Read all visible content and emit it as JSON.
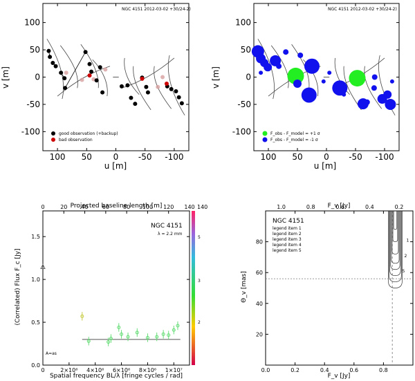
{
  "chart_data": [
    {
      "type": "scatter",
      "id": "uv_left",
      "title": "NGC 4151 2012-03-02 +30/24-2)",
      "xlabel": "u [m]",
      "ylabel": "v [m]",
      "xlim": [
        125,
        -125
      ],
      "ylim": [
        -135,
        135
      ],
      "xticks": [
        100,
        50,
        0,
        -50,
        -100
      ],
      "yticks": [
        100,
        50,
        0,
        -50,
        -100
      ],
      "legend": [
        "good observation (+backup)",
        "bad observation"
      ],
      "good_points": [
        [
          115,
          48
        ],
        [
          113,
          37
        ],
        [
          108,
          26
        ],
        [
          103,
          20
        ],
        [
          94,
          8
        ],
        [
          88,
          -2
        ],
        [
          87,
          -20
        ],
        [
          52,
          46
        ],
        [
          45,
          24
        ],
        [
          42,
          10
        ],
        [
          27,
          18
        ],
        [
          33,
          -6
        ],
        [
          23,
          -28
        ],
        [
          -10,
          -17
        ],
        [
          -20,
          -15
        ],
        [
          -26,
          -38
        ],
        [
          -33,
          -49
        ],
        [
          -45,
          -1
        ],
        [
          -52,
          -18
        ],
        [
          -55,
          -28
        ],
        [
          -88,
          -17
        ],
        [
          -95,
          -22
        ],
        [
          -103,
          -26
        ],
        [
          -108,
          -37
        ],
        [
          -113,
          -48
        ]
      ],
      "bad_points": [
        [
          45,
          3
        ],
        [
          -45,
          -3
        ],
        [
          -87,
          -12
        ]
      ],
      "backup_points": [
        [
          58,
          -5
        ],
        [
          38,
          -4
        ],
        [
          18,
          14
        ],
        [
          -72,
          -18
        ],
        [
          -80,
          0
        ],
        [
          85,
          8
        ]
      ]
    },
    {
      "type": "scatter",
      "id": "uv_right",
      "title": "NGC 4151 2012-03-02 +30/24-2)",
      "xlabel": "u [m]",
      "ylabel": "v [m]",
      "xlim": [
        125,
        -125
      ],
      "ylim": [
        -135,
        135
      ],
      "xticks": [
        100,
        50,
        0,
        -50,
        -100
      ],
      "yticks": [
        100,
        50,
        0,
        -50,
        -100
      ],
      "legend": [
        "F_obs - F_model = +1 σ",
        "F_obs - F_model = -1 σ"
      ],
      "green_points": [
        [
          53,
          2
        ],
        [
          -53,
          -2
        ]
      ],
      "green_sizes": [
        12,
        12
      ],
      "blue_points": [
        [
          118,
          47
        ],
        [
          113,
          34
        ],
        [
          107,
          26
        ],
        [
          101,
          18
        ],
        [
          88,
          30
        ],
        [
          25,
          20
        ],
        [
          30,
          -33
        ],
        [
          -23,
          -20
        ],
        [
          -63,
          -49
        ],
        [
          -96,
          -40
        ],
        [
          -105,
          -32
        ],
        [
          -110,
          -50
        ],
        [
          -83,
          0
        ],
        [
          -30,
          -32
        ],
        [
          45,
          40
        ],
        [
          113,
          8
        ],
        [
          -113,
          -8
        ],
        [
          50,
          -12
        ],
        [
          5,
          -8
        ],
        [
          -5,
          8
        ],
        [
          82,
          20
        ],
        [
          -82,
          -20
        ],
        [
          70,
          46
        ],
        [
          -70,
          -46
        ]
      ],
      "blue_sizes": [
        9,
        7,
        6,
        6,
        8,
        11,
        11,
        11,
        8,
        7,
        6,
        8,
        4,
        3,
        4,
        3,
        3,
        6,
        3,
        3,
        4,
        4,
        4,
        4
      ]
    },
    {
      "type": "scatter",
      "id": "visibility",
      "title": "NGC 4151",
      "subtitle": "λ = 2.2 mm",
      "xlabel": "Spatial frequency BL/λ [fringe cycles / rad]",
      "ylabel": "(Correlated) Flux F_c [Jy]",
      "top_xlabel": "Projected baseline length [m]",
      "corner_label": "A=as",
      "xlim": [
        0,
        11200000.0
      ],
      "ylim": [
        0,
        1.8
      ],
      "xticks_data": [
        0,
        2000000,
        4000000,
        6000000,
        8000000,
        10000000
      ],
      "xtick_labels": [
        "0",
        "2×10⁶",
        "4×10⁶",
        "6×10⁶",
        "8×10⁶",
        "1×10⁷"
      ],
      "yticks": [
        0.0,
        0.5,
        1.0,
        1.5
      ],
      "ytick_labels": [
        "0.0",
        "0.5",
        "1.0",
        "1.5"
      ],
      "top_ticks": [
        0,
        20,
        40,
        60,
        80,
        100,
        120,
        140
      ],
      "colorbar_max": 140,
      "colorbar_tick_labels": [
        "5",
        "3",
        "2"
      ],
      "x": [
        0,
        3000000,
        3500000,
        5000000,
        5200000,
        5800000,
        6000000,
        6500000,
        7200000,
        8000000,
        8700000,
        9200000,
        9600000,
        10000000,
        10300000
      ],
      "y": [
        1.15,
        0.57,
        0.28,
        0.27,
        0.31,
        0.44,
        0.36,
        0.33,
        0.38,
        0.32,
        0.33,
        0.36,
        0.35,
        0.41,
        0.46
      ],
      "model_line": [
        [
          3000000,
          0.3
        ],
        [
          10500000,
          0.3
        ]
      ]
    },
    {
      "type": "line",
      "id": "contours",
      "title": "NGC 4151",
      "xlabel": "F_v [Jy]",
      "ylabel": "Θ_v [mas]",
      "top_xlabel": "F_v [Jy]",
      "xlim": [
        0,
        1.0
      ],
      "ylim": [
        0,
        100
      ],
      "xticks": [
        0.0,
        0.2,
        0.4,
        0.6,
        0.8
      ],
      "xtick_labels": [
        "0.0",
        "0.2",
        "0.4",
        "0.6",
        "0.8"
      ],
      "yticks": [
        20,
        40,
        60,
        80
      ],
      "top_tick_labels": [
        "1.0",
        "0.8",
        "0.6",
        "0.4",
        "0.2"
      ],
      "hline_y": 56,
      "vline_x": 0.86,
      "legend_lines": [
        "legend item 1",
        "legend item 2",
        "legend item 3",
        "legend item 4",
        "legend item 5"
      ],
      "contour_min_y": [
        50,
        54,
        58,
        62,
        66,
        72,
        80,
        88
      ],
      "contour_labels": [
        "5",
        "2",
        "1"
      ],
      "center_x": 0.88
    }
  ]
}
